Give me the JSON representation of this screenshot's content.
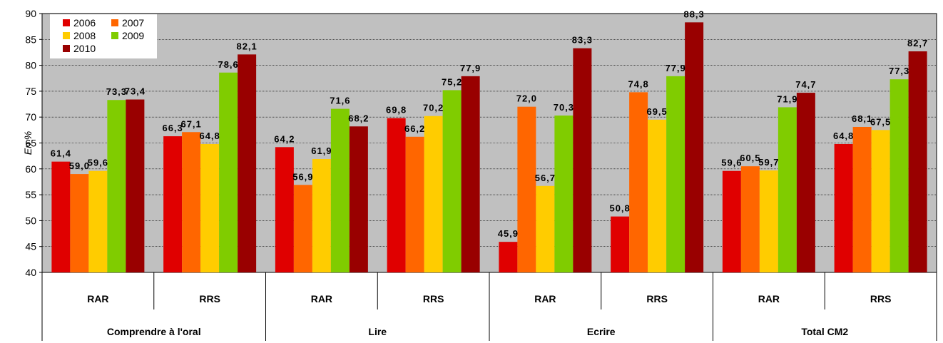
{
  "chart_data": {
    "type": "bar",
    "ylabel": "En %",
    "ylim": [
      40,
      90
    ],
    "yticks": [
      "40",
      "45",
      "50",
      "55",
      "60",
      "65",
      "70",
      "75",
      "80",
      "85",
      "90"
    ],
    "grid": true,
    "legend_position": "top-left",
    "groups": [
      "Comprendre à l'oral",
      "Lire",
      "Ecrire",
      "Total CM2"
    ],
    "subcategories": [
      "RAR",
      "RRS"
    ],
    "categories": [
      "Comprendre à l'oral RAR",
      "Comprendre à l'oral RRS",
      "Lire RAR",
      "Lire RRS",
      "Ecrire RAR",
      "Ecrire RRS",
      "Total CM2 RAR",
      "Total CM2 RRS"
    ],
    "series": [
      {
        "name": "2006",
        "color": "#e00000",
        "values": [
          61.4,
          66.3,
          64.2,
          69.8,
          45.9,
          50.8,
          59.6,
          64.8
        ],
        "labels": [
          "61,4",
          "66,3",
          "64,2",
          "69,8",
          "45,9",
          "50,8",
          "59,6",
          "64,8"
        ]
      },
      {
        "name": "2007",
        "color": "#ff6600",
        "values": [
          59.0,
          67.1,
          56.9,
          66.2,
          72.0,
          74.8,
          60.5,
          68.1
        ],
        "labels": [
          "59,0",
          "67,1",
          "56,9",
          "66,2",
          "72,0",
          "74,8",
          "60,5",
          "68,1"
        ]
      },
      {
        "name": "2008",
        "color": "#ffcc00",
        "values": [
          59.6,
          64.8,
          61.9,
          70.2,
          56.7,
          69.5,
          59.7,
          67.5
        ],
        "labels": [
          "59,6",
          "64,8",
          "61,9",
          "70,2",
          "56,7",
          "69,5",
          "59,7",
          "67,5"
        ]
      },
      {
        "name": "2009",
        "color": "#80cc00",
        "values": [
          73.3,
          78.6,
          71.6,
          75.2,
          70.3,
          77.9,
          71.9,
          77.3
        ],
        "labels": [
          "73,3",
          "78,6",
          "71,6",
          "75,2",
          "70,3",
          "77,9",
          "71,9",
          "77,3"
        ]
      },
      {
        "name": "2010",
        "color": "#990000",
        "values": [
          73.4,
          82.1,
          68.2,
          77.9,
          83.3,
          88.3,
          74.7,
          82.7
        ],
        "labels": [
          "73,4",
          "82,1",
          "68,2",
          "77,9",
          "83,3",
          "88,3",
          "74,7",
          "82,7"
        ]
      }
    ],
    "plot_background": "#c0c0c0"
  }
}
